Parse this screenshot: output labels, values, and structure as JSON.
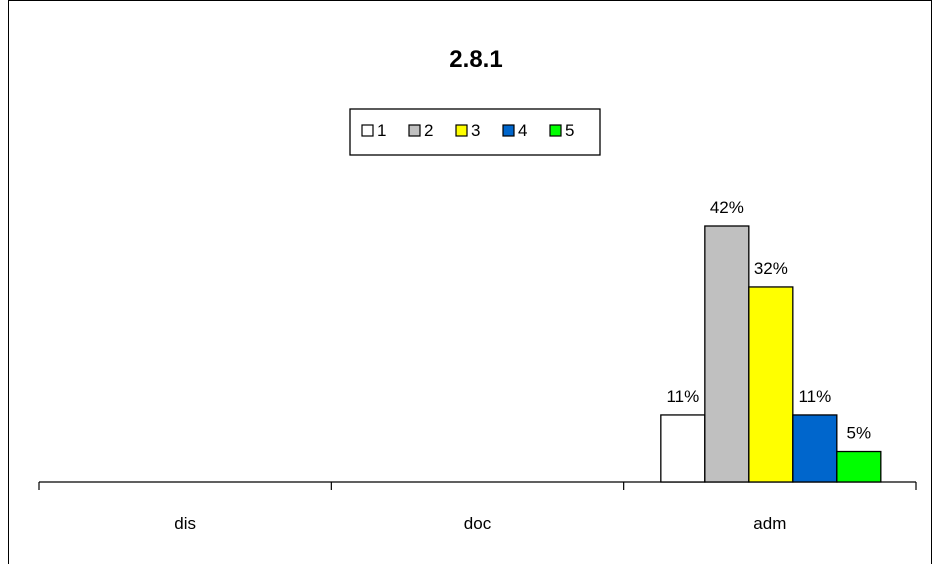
{
  "chart_data": {
    "type": "bar",
    "title": "2.8.1",
    "categories": [
      "dis",
      "doc",
      "adm"
    ],
    "series": [
      {
        "name": "1",
        "color": "#ffffff",
        "values": [
          null,
          null,
          11
        ]
      },
      {
        "name": "2",
        "color": "#c0c0c0",
        "values": [
          null,
          null,
          42
        ]
      },
      {
        "name": "3",
        "color": "#ffff00",
        "values": [
          null,
          null,
          32
        ]
      },
      {
        "name": "4",
        "color": "#0066cc",
        "values": [
          null,
          null,
          11
        ]
      },
      {
        "name": "5",
        "color": "#00ff00",
        "values": [
          null,
          null,
          5
        ]
      }
    ],
    "data_labels": [
      [
        null,
        null,
        "11%"
      ],
      [
        null,
        null,
        "42%"
      ],
      [
        null,
        null,
        "32%"
      ],
      [
        null,
        null,
        "11%"
      ],
      [
        null,
        null,
        "5%"
      ]
    ],
    "value_unit": "%",
    "ylim": [
      0,
      50
    ],
    "grid": false,
    "legend_position": "top-center"
  }
}
